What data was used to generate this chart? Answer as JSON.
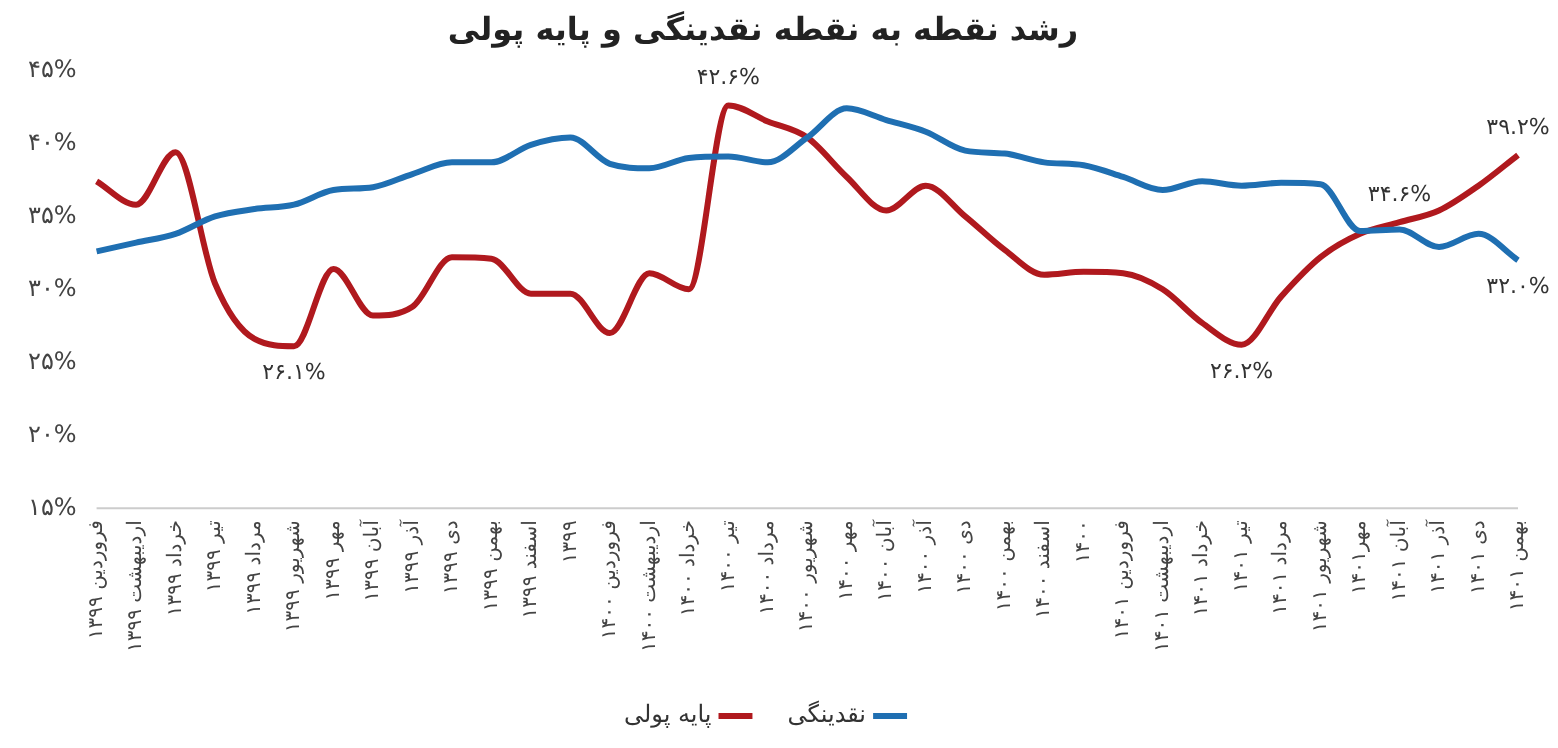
{
  "chart_data": {
    "type": "line",
    "title": "رشد نقطه به نقطه نقدینگی و پایه پولی",
    "categories": [
      "فروردین ۱۳۹۹",
      "اردیبهشت ۱۳۹۹",
      "خرداد ۱۳۹۹",
      "تیر ۱۳۹۹",
      "مرداد ۱۳۹۹",
      "شهریور ۱۳۹۹",
      "مهر ۱۳۹۹",
      "آبان ۱۳۹۹",
      "آذر ۱۳۹۹",
      "دی ۱۳۹۹",
      "بهمن ۱۳۹۹",
      "اسفند ۱۳۹۹",
      "۱۳۹۹",
      "فروردین ۱۴۰۰",
      "اردیبهشت ۱۴۰۰",
      "خرداد ۱۴۰۰",
      "تیر ۱۴۰۰",
      "مرداد ۱۴۰۰",
      "شهریور ۱۴۰۰",
      "مهر ۱۴۰۰",
      "آبان ۱۴۰۰",
      "آذر ۱۴۰۰",
      "دی ۱۴۰۰",
      "بهمن ۱۴۰۰",
      "اسفند ۱۴۰۰",
      "۱۴۰۰",
      "فروردین ۱۴۰۱",
      "اردیبهشت ۱۴۰۱",
      "خرداد ۱۴۰۱",
      "تیر ۱۴۰۱",
      "مرداد ۱۴۰۱",
      "شهریور ۱۴۰۱",
      "مهر۱۴۰۱",
      "آبان ۱۴۰۱",
      "آذر ۱۴۰۱",
      "دی ۱۴۰۱",
      "بهمن ۱۴۰۱"
    ],
    "series": [
      {
        "name": "نقدینگی",
        "color": "#1f6fb2",
        "values": [
          32.6,
          33.2,
          33.8,
          35.0,
          35.5,
          35.8,
          36.8,
          37.0,
          37.9,
          38.7,
          38.7,
          39.9,
          40.4,
          38.6,
          38.3,
          39.0,
          39.1,
          38.7,
          40.4,
          42.4,
          41.6,
          40.8,
          39.5,
          39.3,
          38.7,
          38.5,
          37.7,
          36.8,
          37.4,
          37.1,
          37.3,
          37.2,
          34.0,
          34.1,
          32.9,
          33.8,
          32.0
        ],
        "value_labels": [
          null,
          null,
          null,
          null,
          null,
          null,
          null,
          null,
          null,
          null,
          null,
          null,
          null,
          null,
          null,
          null,
          null,
          null,
          null,
          null,
          null,
          null,
          null,
          null,
          null,
          null,
          null,
          null,
          null,
          null,
          null,
          null,
          null,
          null,
          null,
          null,
          "۳۲.۰%"
        ]
      },
      {
        "name": "پایه پولی",
        "color": "#b0191e",
        "values": [
          37.4,
          35.8,
          39.4,
          30.4,
          26.6,
          26.1,
          31.4,
          28.2,
          28.8,
          32.2,
          32.1,
          29.7,
          29.7,
          27.0,
          31.1,
          30.0,
          42.6,
          41.5,
          40.4,
          37.7,
          35.4,
          37.1,
          35.0,
          32.7,
          31.0,
          31.2,
          31.1,
          30.0,
          27.7,
          26.2,
          29.5,
          32.2,
          33.8,
          34.6,
          35.4,
          37.1,
          39.2
        ],
        "value_labels": [
          null,
          null,
          null,
          null,
          null,
          "۲۶.۱%",
          null,
          null,
          null,
          null,
          null,
          null,
          null,
          null,
          null,
          null,
          "۴۲.۶%",
          null,
          null,
          null,
          null,
          null,
          null,
          null,
          null,
          null,
          null,
          null,
          null,
          "۲۶.۲%",
          null,
          null,
          null,
          "۳۴.۶%",
          null,
          null,
          "۳۹.۲%"
        ]
      }
    ],
    "ylim": [
      15,
      45
    ],
    "yticks": [
      {
        "value": 15,
        "label": "۱۵%"
      },
      {
        "value": 20,
        "label": "۲۰%"
      },
      {
        "value": 25,
        "label": "۲۵%"
      },
      {
        "value": 30,
        "label": "۳۰%"
      },
      {
        "value": 35,
        "label": "۳۵%"
      },
      {
        "value": 40,
        "label": "۴۰%"
      },
      {
        "value": 45,
        "label": "۴۵%"
      }
    ],
    "grid": false,
    "legend": "bottom",
    "marker": "none",
    "line_style": "solid"
  }
}
